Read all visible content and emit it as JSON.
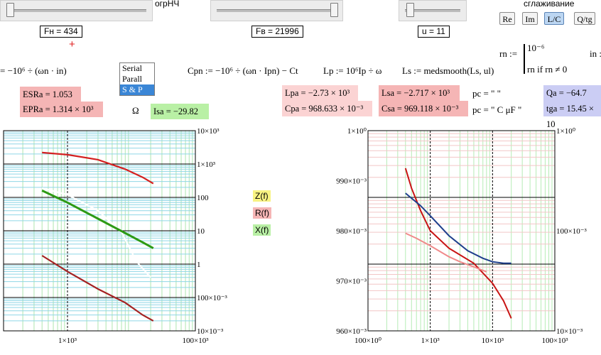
{
  "sliders": {
    "fn": {
      "label_text": "огрНЧ",
      "value_label": "Fн = 434",
      "position": 0.05
    },
    "fv": {
      "value_label": "Fв = 21996",
      "position": 0.96
    },
    "u": {
      "value_label": "u = 11",
      "position": 0.1
    }
  },
  "smoothing_label": "сглаживание",
  "mode_buttons": [
    {
      "label": "Re",
      "active": false
    },
    {
      "label": "Im",
      "active": false
    },
    {
      "label": "L/C",
      "active": true
    },
    {
      "label": "Q/tg",
      "active": false
    }
  ],
  "marker_plus": "+",
  "formulas": {
    "omega_expr": "= −10⁶ ÷ (ωn · in)",
    "cp_expr": "Cpn := −10⁶ ÷ (ωn · Ipn) − Ct",
    "lp_expr": "Lp := 10⁶Ip ÷ ω",
    "ls_expr": "Ls := medsmooth(Ls, ul)",
    "rn_def": "rn :=",
    "rn_case1": "10⁻⁶",
    "rn_case2": "rn  if  rn ≠ 0",
    "in_def": "in :"
  },
  "circuit_list": {
    "options": [
      "Serial",
      "Parall",
      "S & P"
    ],
    "selected": "S & P"
  },
  "results": {
    "esr": "ESRa = 1.053",
    "epr": "EPRa = 1.314 × 10³",
    "ohm": "Ω",
    "isa": "Isa = −29.82",
    "lpa": "Lpa = −2.73 × 10³",
    "cpa": "Cpa = 968.633 × 10⁻³",
    "lsa": "Lsa = −2.717 × 10³",
    "csa": "Csa = 969.118 × 10⁻³",
    "pc1": "pc = \"          \"",
    "pc2": "pc = \"  C  μF    \"",
    "qa": "Qa = −64.7",
    "tga": "tga = 15.45 × 10"
  },
  "legend": {
    "z": "Z(f)",
    "r": "R(f)",
    "x": "X(f)"
  },
  "chart_data": [
    {
      "type": "line",
      "title": "",
      "xscale": "log",
      "yscale": "log",
      "xlim": [
        100,
        100000
      ],
      "ylim": [
        0.01,
        10000
      ],
      "x_ticks": [
        "1×10³",
        "100×10³"
      ],
      "y_ticks_right": [
        "10×10³",
        "1×10³",
        "100",
        "10",
        "1",
        "100×10⁻³",
        "10×10⁻³"
      ],
      "series": [
        {
          "name": "Z(f)",
          "color": "#ffffff",
          "x": [
            400,
            1000,
            3000,
            7000,
            12000,
            20000
          ],
          "y": [
            190,
            120,
            40,
            9,
            1.2,
            0.4
          ]
        },
        {
          "name": "R(f)",
          "color": "#d42020",
          "x": [
            400,
            1000,
            3000,
            8000,
            15000,
            22000
          ],
          "y": [
            2200,
            1900,
            1350,
            700,
            400,
            260
          ]
        },
        {
          "name": "X(f)",
          "color": "#2d9a14",
          "x": [
            400,
            1000,
            3000,
            8000,
            15000,
            22000
          ],
          "y": [
            160,
            70,
            23,
            8.5,
            4.5,
            3
          ]
        },
        {
          "name": "",
          "color": "#a52222",
          "x": [
            400,
            1000,
            3000,
            8000,
            15000,
            22000
          ],
          "y": [
            1.8,
            0.6,
            0.18,
            0.07,
            0.03,
            0.02
          ]
        }
      ]
    },
    {
      "type": "line",
      "title": "",
      "xscale": "log",
      "xlim": [
        100,
        100000
      ],
      "ylim_left": [
        0.96,
        1.0
      ],
      "y_ticks_left": [
        "1×10⁰",
        "990×10⁻³",
        "980×10⁻³",
        "970×10⁻³",
        "960×10⁻³"
      ],
      "x_ticks": [
        "100×10⁰",
        "1×10³",
        "10×10³",
        "100×10³"
      ],
      "y_ticks_right": [
        "1×10⁰",
        "100×10⁻³",
        "10×10⁻³"
      ],
      "series": [
        {
          "name": "",
          "color": "#c81414",
          "x": [
            400,
            500,
            700,
            1000,
            2000,
            5000,
            10000,
            15000,
            20000
          ],
          "y": [
            0.9925,
            0.9885,
            0.984,
            0.98,
            0.9765,
            0.9735,
            0.9695,
            0.966,
            0.9625
          ]
        },
        {
          "name": "",
          "color": "#1f3f8c",
          "x": [
            400,
            700,
            1000,
            2000,
            4000,
            7000,
            10000,
            15000,
            20000
          ],
          "y": [
            0.9875,
            0.985,
            0.983,
            0.979,
            0.976,
            0.9745,
            0.9738,
            0.9735,
            0.9735
          ]
        },
        {
          "name": "",
          "color": "#f08a8a",
          "x": [
            400,
            600,
            1000,
            2000,
            3000,
            5000,
            8000
          ],
          "y": [
            0.9795,
            0.9785,
            0.977,
            0.9748,
            0.9738,
            0.9728,
            0.9718
          ]
        }
      ]
    }
  ]
}
